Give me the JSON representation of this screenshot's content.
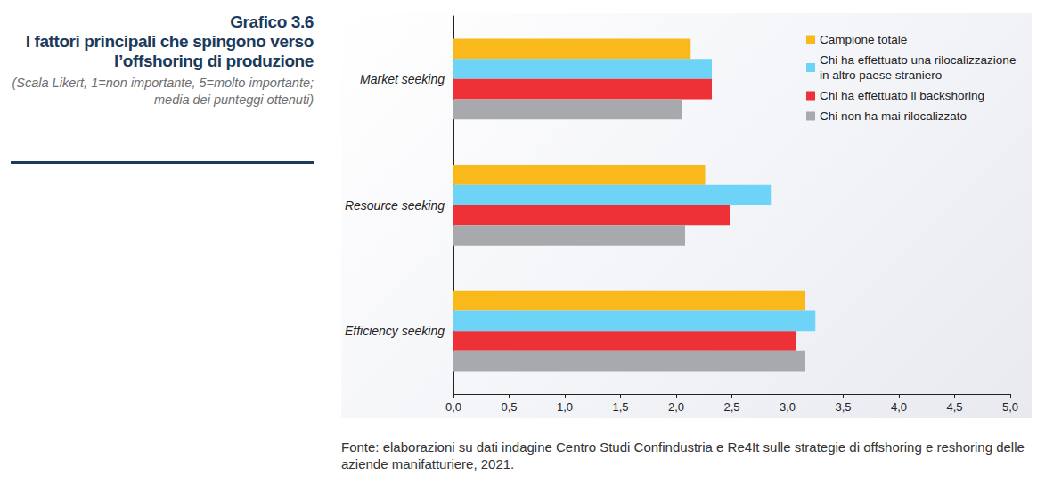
{
  "chart_data": {
    "type": "bar",
    "orientation": "horizontal",
    "title": "Grafico 3.6",
    "subtitle": "I fattori principali che spingono verso l’offshoring di produzione",
    "annotations": [
      "(Scala Likert, 1=non importante, 5=molto importante; media dei punteggi ottenuti)",
      "Fonte: elaborazioni su dati indagine Centro Studi Confindustria e Re4It sulle strategie di offshoring e reshoring delle aziende manifatturiere, 2021."
    ],
    "categories": [
      "Market seeking",
      "Resource seeking",
      "Efficiency seeking"
    ],
    "series": [
      {
        "name": "Campione totale",
        "color": "#f9b91a",
        "values": [
          2.13,
          2.26,
          3.16
        ]
      },
      {
        "name": "Chi ha effettuato una rilocalizzazione in altro paese straniero",
        "color": "#6dd3f7",
        "values": [
          2.32,
          2.85,
          3.25
        ]
      },
      {
        "name": "Chi ha effettuato il backshoring",
        "color": "#ee3136",
        "values": [
          2.32,
          2.48,
          3.08
        ]
      },
      {
        "name": "Chi non ha mai rilocalizzato",
        "color": "#a7a9ac",
        "values": [
          2.05,
          2.08,
          3.16
        ]
      }
    ],
    "xlim": [
      0,
      5
    ],
    "xticks": [
      {
        "value": 0,
        "label": "0,0"
      },
      {
        "value": 0.5,
        "label": "0,5"
      },
      {
        "value": 1,
        "label": "1,0"
      },
      {
        "value": 1.5,
        "label": "1,5"
      },
      {
        "value": 2,
        "label": "2,0"
      },
      {
        "value": 2.5,
        "label": "2,5"
      },
      {
        "value": 3,
        "label": "3,0"
      },
      {
        "value": 3.5,
        "label": "3,5"
      },
      {
        "value": 4,
        "label": "4,0"
      },
      {
        "value": 4.5,
        "label": "4,5"
      },
      {
        "value": 5,
        "label": "5,0"
      }
    ],
    "grid": false,
    "legend": "top-right",
    "data_labels": false
  }
}
